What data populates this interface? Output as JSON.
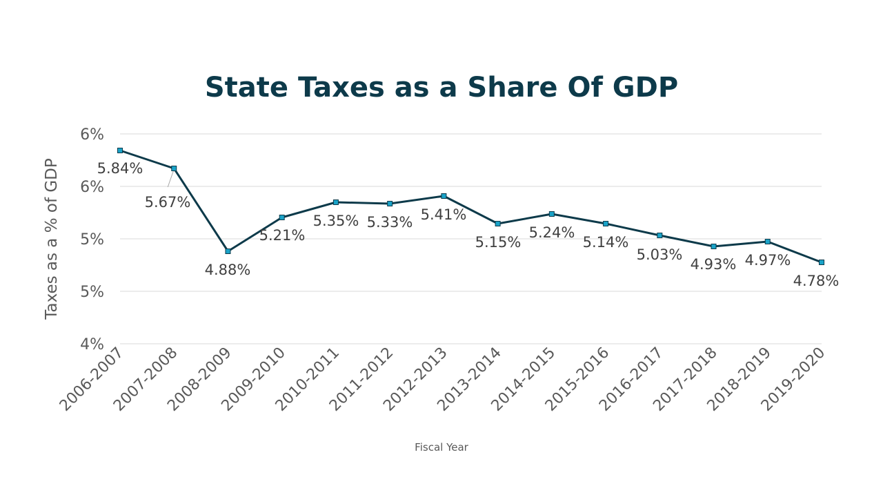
{
  "chart_data": {
    "type": "line",
    "title": "State Taxes as a Share Of GDP",
    "xlabel": "Fiscal Year",
    "ylabel": "Taxes as a % of GDP",
    "ylim": [
      4,
      6
    ],
    "y_ticks": [
      {
        "value": 6.0,
        "label": "6%"
      },
      {
        "value": 5.5,
        "label": "6%"
      },
      {
        "value": 5.0,
        "label": "5%"
      },
      {
        "value": 4.5,
        "label": "5%"
      },
      {
        "value": 4.0,
        "label": "4%"
      }
    ],
    "grid": true,
    "legend": "none",
    "categories": [
      "2006-2007",
      "2007-2008",
      "2008-2009",
      "2009-2010",
      "2010-2011",
      "2011-2012",
      "2012-2013",
      "2013-2014",
      "2014-2015",
      "2015-2016",
      "2016-2017",
      "2017-2018",
      "2018-2019",
      "2019-2020"
    ],
    "series": [
      {
        "name": "Taxes as a % of GDP",
        "values": [
          5.84,
          5.67,
          4.88,
          5.21,
          5.35,
          5.33,
          5.41,
          5.15,
          5.24,
          5.14,
          5.03,
          4.93,
          4.97,
          4.78
        ],
        "labels": [
          "5.84%",
          "5.67%",
          "4.88%",
          "5.21%",
          "5.35%",
          "5.33%",
          "5.41%",
          "5.15%",
          "5.24%",
          "5.14%",
          "5.03%",
          "4.93%",
          "4.97%",
          "4.78%"
        ],
        "line_color": "#0d3a4a",
        "marker_color": "#1aa3c8"
      }
    ]
  }
}
